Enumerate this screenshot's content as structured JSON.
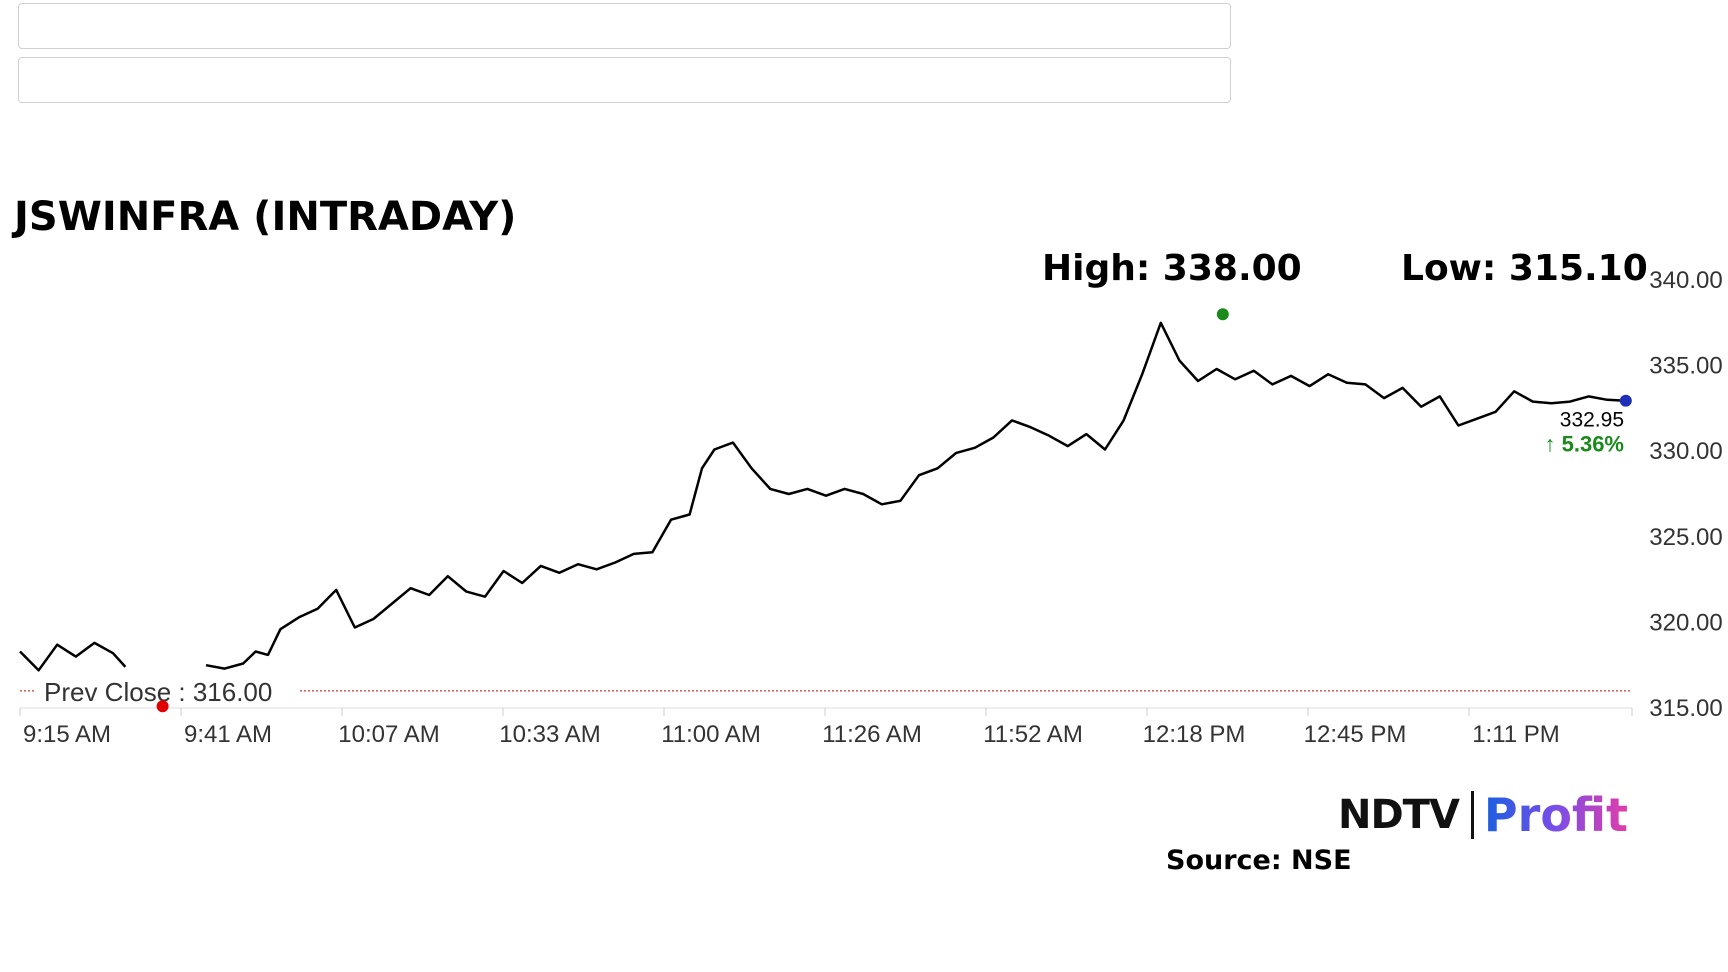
{
  "search": {
    "field1_value": "",
    "field2_value": ""
  },
  "chart_data": {
    "type": "line",
    "title": "JSWINFRA (INTRADAY)",
    "high_label": "High: 338.00",
    "low_label": "Low: 315.10",
    "prev_close_label": "Prev Close : 316.00",
    "prev_close": 316.0,
    "last_price": "332.95",
    "change_pct": "5.36%",
    "ylim": [
      315,
      340
    ],
    "y_ticks": [
      "315.00",
      "320.00",
      "325.00",
      "330.00",
      "335.00",
      "340.00"
    ],
    "x_tick_labels": [
      "9:15 AM",
      "9:41 AM",
      "10:07 AM",
      "10:33 AM",
      "11:00 AM",
      "11:26 AM",
      "11:52 AM",
      "12:18 PM",
      "12:45 PM",
      "1:11 PM"
    ],
    "x_range_minutes": [
      0,
      260
    ],
    "series": [
      {
        "x": [
          0,
          3,
          6,
          9,
          12,
          15,
          17,
          19,
          22,
          25,
          28,
          30,
          33,
          36,
          38,
          40,
          42,
          45,
          48,
          51,
          54,
          57,
          60,
          63,
          66,
          69,
          72,
          75,
          78,
          81,
          84,
          87,
          90,
          93,
          96,
          99,
          102,
          105,
          108,
          110,
          112,
          115,
          118,
          121,
          124,
          127,
          130,
          133,
          136,
          139,
          142,
          145,
          148,
          151,
          154,
          157,
          160,
          163,
          166,
          169,
          172,
          175,
          178,
          181,
          184,
          187,
          190,
          193,
          196,
          199,
          202,
          205,
          208,
          211,
          214,
          217,
          220,
          223,
          226,
          229,
          232,
          235,
          238,
          241,
          244,
          247,
          250,
          253,
          256,
          259
        ],
        "y": [
          318.3,
          317.2,
          318.7,
          318.0,
          318.8,
          318.2,
          317.4,
          null,
          null,
          null,
          null,
          317.5,
          317.3,
          317.6,
          318.3,
          318.1,
          319.6,
          320.3,
          320.8,
          321.9,
          319.7,
          320.2,
          321.1,
          322.0,
          321.6,
          322.7,
          321.8,
          321.5,
          323.0,
          322.3,
          323.3,
          322.9,
          323.4,
          323.1,
          323.5,
          324.0,
          324.1,
          326.0,
          326.3,
          329.0,
          330.1,
          330.5,
          329.0,
          327.8,
          327.5,
          327.8,
          327.4,
          327.8,
          327.5,
          326.9,
          327.1,
          328.6,
          329.0,
          329.9,
          330.2,
          330.8,
          331.8,
          331.4,
          330.9,
          330.3,
          331.0,
          330.1,
          331.8,
          334.5,
          337.5,
          335.3,
          334.1,
          334.8,
          334.2,
          334.7,
          333.9,
          334.4,
          333.8,
          334.5,
          334.0,
          333.9,
          333.1,
          333.7,
          332.6,
          333.2,
          331.5,
          331.9,
          332.3,
          333.5,
          332.9,
          332.8,
          332.9,
          333.2,
          333.0,
          332.95
        ]
      }
    ],
    "high_point": {
      "x": 194,
      "y": 338.0
    },
    "low_point": {
      "x": 23,
      "y": 315.1
    },
    "grid": false,
    "colors": {
      "line": "#000000",
      "prev_close": "#cc0000",
      "high_marker": "#1a8a1a",
      "low_marker": "#e00000",
      "last_marker": "#1f2fb8",
      "change_up": "#1a8a1a"
    }
  },
  "branding": {
    "logo_left": "NDTV",
    "logo_right": "Profit",
    "source": "Source: NSE"
  }
}
